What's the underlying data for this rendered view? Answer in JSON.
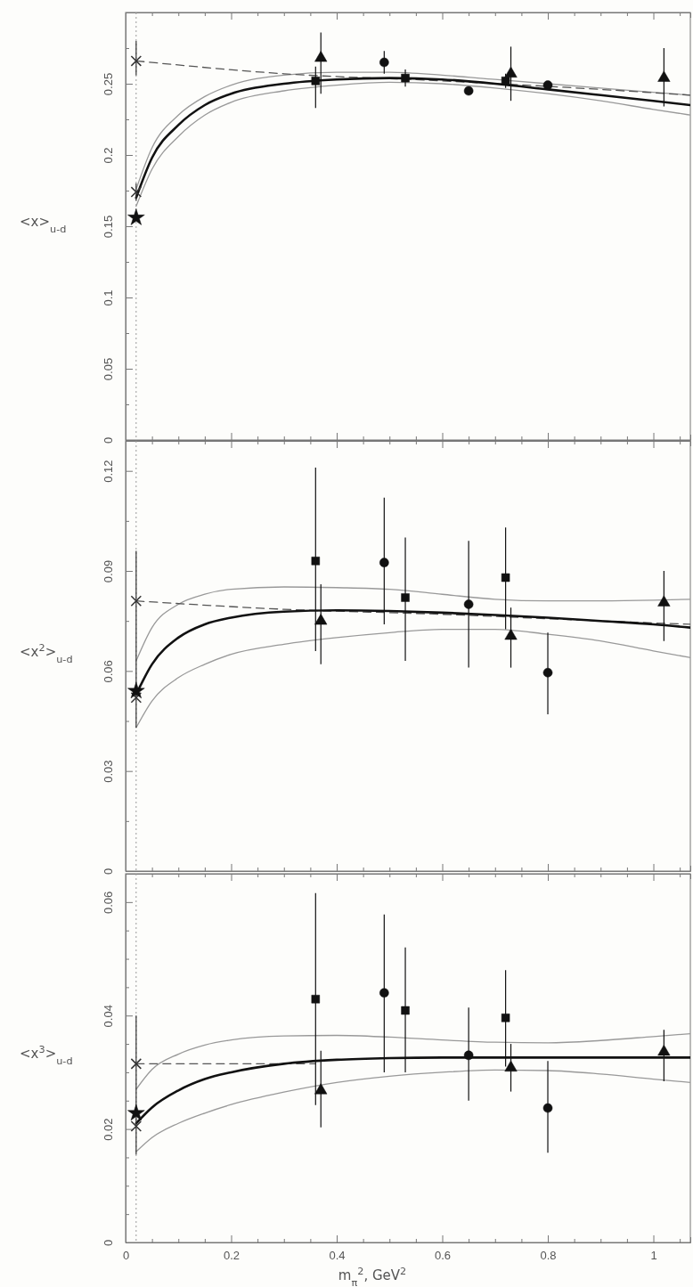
{
  "chart_data": [
    {
      "type": "scatter",
      "ylabel": "<x>$_{u-d}$",
      "xlim": [
        0,
        1.07
      ],
      "ylim": [
        0,
        0.3
      ],
      "xticks": [
        0,
        {
          "value": 0.05,
          "label": null
        },
        {
          "value": 0.1,
          "label": null
        },
        {
          "value": 0.15,
          "label": null
        },
        0.2,
        {
          "value": 0.25,
          "label": null
        },
        {
          "value": 0.3,
          "label": null
        },
        {
          "value": 0.35,
          "label": null
        },
        0.4,
        {
          "value": 0.45,
          "label": null
        },
        {
          "value": 0.5,
          "label": null
        },
        {
          "value": 0.55,
          "label": null
        },
        0.6,
        {
          "value": 0.65,
          "label": null
        },
        {
          "value": 0.7,
          "label": null
        },
        {
          "value": 0.75,
          "label": null
        },
        0.8,
        {
          "value": 0.85,
          "label": null
        },
        {
          "value": 0.9,
          "label": null
        },
        {
          "value": 0.95,
          "label": null
        },
        1,
        {
          "value": 1.05,
          "label": null
        }
      ],
      "yticks": [
        0,
        {
          "value": 0.025,
          "label": null
        },
        0.05,
        {
          "value": 0.075,
          "label": null
        },
        0.1,
        {
          "value": 0.125,
          "label": null
        },
        0.15,
        {
          "value": 0.175,
          "label": null
        },
        0.2,
        {
          "value": 0.225,
          "label": null
        },
        0.25,
        {
          "value": 0.275,
          "label": null
        }
      ],
      "tick_labels": "y",
      "grid": false,
      "ref_lines": [
        {
          "axis": "x",
          "value": 0.02,
          "color": "#999999",
          "line_style": "dotted"
        }
      ],
      "series": [
        {
          "type": "line",
          "color": "#999999",
          "line_style": "solid",
          "marker": "none",
          "x": [
            0.02,
            0.05,
            0.1,
            0.15,
            0.2,
            0.3,
            0.4,
            0.5,
            0.6,
            0.7,
            0.8,
            0.9,
            1.0,
            1.07
          ],
          "values": [
            0.176,
            0.205,
            0.228,
            0.241,
            0.249,
            0.256,
            0.258,
            0.258,
            0.256,
            0.253,
            0.25,
            0.247,
            0.244,
            0.242
          ]
        },
        {
          "type": "line",
          "color": "#999999",
          "line_style": "solid",
          "marker": "none",
          "x": [
            0.02,
            0.05,
            0.1,
            0.15,
            0.2,
            0.3,
            0.4,
            0.5,
            0.6,
            0.7,
            0.8,
            0.9,
            1.0,
            1.07
          ],
          "values": [
            0.164,
            0.19,
            0.213,
            0.228,
            0.237,
            0.245,
            0.249,
            0.251,
            0.25,
            0.247,
            0.243,
            0.238,
            0.232,
            0.228
          ]
        },
        {
          "type": "line",
          "color": "#555555",
          "line_style": "dashed",
          "marker": "none",
          "x": [
            0.02,
            0.3,
            0.6,
            0.9,
            1.07
          ],
          "values": [
            0.266,
            0.257,
            0.252,
            0.246,
            0.242
          ]
        },
        {
          "type": "line",
          "color": "#111111",
          "line_style": "solid",
          "marker": "none",
          "x": [
            0.02,
            0.05,
            0.1,
            0.15,
            0.2,
            0.3,
            0.4,
            0.5,
            0.6,
            0.7,
            0.8,
            0.9,
            1.0,
            1.07
          ],
          "values": [
            0.17,
            0.198,
            0.221,
            0.235,
            0.243,
            0.25,
            0.253,
            0.254,
            0.253,
            0.25,
            0.246,
            0.242,
            0.238,
            0.235
          ]
        },
        {
          "type": "scatter",
          "marker": "cross",
          "color": "#333333",
          "x": [
            0.02,
            0.02
          ],
          "values": [
            0.266,
            0.174
          ],
          "errors": [
            [
              0.256,
              0.28
            ],
            [
              0.168,
              0.18
            ]
          ]
        },
        {
          "type": "scatter",
          "marker": "star",
          "color": "#111111",
          "x": [
            0.02
          ],
          "values": [
            0.156
          ]
        },
        {
          "type": "scatter",
          "marker": "square",
          "color": "#111111",
          "x": [
            0.36,
            0.53,
            0.72
          ],
          "values": [
            0.252,
            0.254,
            0.252
          ],
          "errors": [
            [
              0.233,
              0.262
            ],
            [
              0.248,
              0.26
            ],
            [
              0.247,
              0.257
            ]
          ]
        },
        {
          "type": "scatter",
          "marker": "triangle",
          "color": "#111111",
          "x": [
            0.37,
            0.73,
            1.02
          ],
          "values": [
            0.268,
            0.257,
            0.254
          ],
          "errors": [
            [
              0.243,
              0.286
            ],
            [
              0.238,
              0.276
            ],
            [
              0.234,
              0.275
            ]
          ]
        },
        {
          "type": "scatter",
          "marker": "circle",
          "color": "#111111",
          "x": [
            0.49,
            0.65,
            0.8
          ],
          "values": [
            0.265,
            0.245,
            0.249
          ],
          "errors": [
            [
              0.257,
              0.273
            ],
            null,
            null
          ]
        }
      ]
    },
    {
      "type": "scatter",
      "ylabel": "<x$^{2}$>$_{u-d}$",
      "xlim": [
        0,
        1.07
      ],
      "ylim": [
        0,
        0.129
      ],
      "xticks": [
        0,
        {
          "value": 0.05,
          "label": null
        },
        {
          "value": 0.1,
          "label": null
        },
        {
          "value": 0.15,
          "label": null
        },
        0.2,
        {
          "value": 0.25,
          "label": null
        },
        {
          "value": 0.3,
          "label": null
        },
        {
          "value": 0.35,
          "label": null
        },
        0.4,
        {
          "value": 0.45,
          "label": null
        },
        {
          "value": 0.5,
          "label": null
        },
        {
          "value": 0.55,
          "label": null
        },
        0.6,
        {
          "value": 0.65,
          "label": null
        },
        {
          "value": 0.7,
          "label": null
        },
        {
          "value": 0.75,
          "label": null
        },
        0.8,
        {
          "value": 0.85,
          "label": null
        },
        {
          "value": 0.9,
          "label": null
        },
        {
          "value": 0.95,
          "label": null
        },
        1,
        {
          "value": 1.05,
          "label": null
        }
      ],
      "yticks": [
        0,
        {
          "value": 0.015,
          "label": null
        },
        0.03,
        {
          "value": 0.045,
          "label": null
        },
        0.06,
        {
          "value": 0.075,
          "label": null
        },
        0.09,
        {
          "value": 0.105,
          "label": null
        },
        0.12
      ],
      "tick_labels": "y",
      "grid": false,
      "ref_lines": [
        {
          "axis": "x",
          "value": 0.02,
          "color": "#999999",
          "line_style": "dotted"
        }
      ],
      "series": [
        {
          "type": "line",
          "color": "#999999",
          "line_style": "solid",
          "marker": "none",
          "x": [
            0.02,
            0.05,
            0.1,
            0.15,
            0.2,
            0.3,
            0.4,
            0.5,
            0.6,
            0.7,
            0.8,
            0.9,
            1.0,
            1.07
          ],
          "values": [
            0.063,
            0.073,
            0.08,
            0.083,
            0.0845,
            0.0852,
            0.085,
            0.0845,
            0.083,
            0.0815,
            0.081,
            0.081,
            0.0812,
            0.0815
          ]
        },
        {
          "type": "line",
          "color": "#999999",
          "line_style": "solid",
          "marker": "none",
          "x": [
            0.02,
            0.05,
            0.1,
            0.15,
            0.2,
            0.3,
            0.4,
            0.5,
            0.6,
            0.7,
            0.8,
            0.9,
            1.0,
            1.07
          ],
          "values": [
            0.043,
            0.051,
            0.058,
            0.062,
            0.065,
            0.068,
            0.07,
            0.0715,
            0.0725,
            0.0725,
            0.071,
            0.069,
            0.066,
            0.064
          ]
        },
        {
          "type": "line",
          "color": "#555555",
          "line_style": "dashed",
          "marker": "none",
          "x": [
            0.02,
            0.3,
            0.6,
            0.9,
            1.07
          ],
          "values": [
            0.081,
            0.0785,
            0.077,
            0.075,
            0.074
          ]
        },
        {
          "type": "line",
          "color": "#111111",
          "line_style": "solid",
          "marker": "none",
          "x": [
            0.02,
            0.05,
            0.1,
            0.15,
            0.2,
            0.3,
            0.4,
            0.5,
            0.6,
            0.7,
            0.8,
            0.9,
            1.0,
            1.07
          ],
          "values": [
            0.053,
            0.062,
            0.07,
            0.074,
            0.076,
            0.0778,
            0.0782,
            0.078,
            0.0775,
            0.0768,
            0.076,
            0.075,
            0.074,
            0.073
          ]
        },
        {
          "type": "scatter",
          "marker": "cross",
          "color": "#333333",
          "x": [
            0.02,
            0.02
          ],
          "values": [
            0.081,
            0.052
          ],
          "errors": [
            [
              0.043,
              0.096
            ],
            null
          ]
        },
        {
          "type": "scatter",
          "marker": "star",
          "color": "#111111",
          "x": [
            0.02
          ],
          "values": [
            0.054
          ]
        },
        {
          "type": "scatter",
          "marker": "square",
          "color": "#111111",
          "x": [
            0.36,
            0.53,
            0.72
          ],
          "values": [
            0.093,
            0.082,
            0.088
          ],
          "errors": [
            [
              0.066,
              0.121
            ],
            [
              0.063,
              0.1
            ],
            [
              0.0725,
              0.103
            ]
          ]
        },
        {
          "type": "scatter",
          "marker": "triangle",
          "color": "#111111",
          "x": [
            0.37,
            0.73,
            1.02
          ],
          "values": [
            0.075,
            0.0705,
            0.0805
          ],
          "errors": [
            [
              0.062,
              0.086
            ],
            [
              0.061,
              0.079
            ],
            [
              0.069,
              0.09
            ]
          ]
        },
        {
          "type": "scatter",
          "marker": "circle",
          "color": "#111111",
          "x": [
            0.49,
            0.65,
            0.8
          ],
          "values": [
            0.0925,
            0.08,
            0.0595
          ],
          "errors": [
            [
              0.074,
              0.112
            ],
            [
              0.061,
              0.099
            ],
            [
              0.047,
              0.0715
            ]
          ]
        }
      ]
    },
    {
      "type": "scatter",
      "ylabel": "<x$^{3}$>$_{u-d}$",
      "xlabel": "m$_{π}$$^{2}$, GeV$^{2}$",
      "xlim": [
        0,
        1.07
      ],
      "ylim": [
        0,
        0.065
      ],
      "xticks": [
        0,
        {
          "value": 0.05,
          "label": null
        },
        {
          "value": 0.1,
          "label": null
        },
        {
          "value": 0.15,
          "label": null
        },
        0.2,
        {
          "value": 0.25,
          "label": null
        },
        {
          "value": 0.3,
          "label": null
        },
        {
          "value": 0.35,
          "label": null
        },
        0.4,
        {
          "value": 0.45,
          "label": null
        },
        {
          "value": 0.5,
          "label": null
        },
        {
          "value": 0.55,
          "label": null
        },
        0.6,
        {
          "value": 0.65,
          "label": null
        },
        {
          "value": 0.7,
          "label": null
        },
        {
          "value": 0.75,
          "label": null
        },
        0.8,
        {
          "value": 0.85,
          "label": null
        },
        {
          "value": 0.9,
          "label": null
        },
        {
          "value": 0.95,
          "label": null
        },
        1,
        {
          "value": 1.05,
          "label": null
        }
      ],
      "yticks": [
        0,
        {
          "value": 0.005,
          "label": null
        },
        {
          "value": 0.01,
          "label": null
        },
        {
          "value": 0.015,
          "label": null
        },
        0.02,
        {
          "value": 0.025,
          "label": null
        },
        {
          "value": 0.03,
          "label": null
        },
        {
          "value": 0.035,
          "label": null
        },
        0.04,
        {
          "value": 0.045,
          "label": null
        },
        {
          "value": 0.05,
          "label": null
        },
        {
          "value": 0.055,
          "label": null
        },
        0.06
      ],
      "grid": false,
      "ref_lines": [
        {
          "axis": "x",
          "value": 0.02,
          "color": "#999999",
          "line_style": "dotted"
        }
      ],
      "series": [
        {
          "type": "line",
          "color": "#999999",
          "line_style": "solid",
          "marker": "none",
          "x": [
            0.02,
            0.05,
            0.1,
            0.15,
            0.2,
            0.3,
            0.4,
            0.5,
            0.6,
            0.7,
            0.8,
            0.9,
            1.0,
            1.07
          ],
          "values": [
            0.027,
            0.0305,
            0.0332,
            0.0348,
            0.0357,
            0.0364,
            0.0365,
            0.0362,
            0.0357,
            0.0353,
            0.0352,
            0.0356,
            0.0363,
            0.0368
          ]
        },
        {
          "type": "line",
          "color": "#999999",
          "line_style": "solid",
          "marker": "none",
          "x": [
            0.02,
            0.05,
            0.1,
            0.15,
            0.2,
            0.3,
            0.4,
            0.5,
            0.6,
            0.7,
            0.8,
            0.9,
            1.0,
            1.07
          ],
          "values": [
            0.016,
            0.0185,
            0.021,
            0.0228,
            0.0243,
            0.0265,
            0.0282,
            0.0293,
            0.03,
            0.0304,
            0.0303,
            0.0297,
            0.0288,
            0.0282
          ]
        },
        {
          "type": "line",
          "color": "#555555",
          "line_style": "dashed",
          "marker": "none",
          "x": [
            0.02,
            0.36
          ],
          "values": [
            0.0315,
            0.0315
          ]
        },
        {
          "type": "line",
          "color": "#111111",
          "line_style": "solid",
          "marker": "none",
          "x": [
            0.02,
            0.05,
            0.1,
            0.15,
            0.2,
            0.3,
            0.4,
            0.5,
            0.6,
            0.7,
            0.8,
            0.9,
            1.0,
            1.07
          ],
          "values": [
            0.021,
            0.0238,
            0.0268,
            0.0288,
            0.03,
            0.0315,
            0.0322,
            0.0325,
            0.0326,
            0.0326,
            0.0326,
            0.0326,
            0.0326,
            0.0326
          ]
        },
        {
          "type": "scatter",
          "marker": "cross",
          "color": "#333333",
          "x": [
            0.02,
            0.02
          ],
          "values": [
            0.0315,
            0.0205
          ],
          "errors": [
            [
              0.0155,
              0.04
            ],
            null
          ]
        },
        {
          "type": "scatter",
          "marker": "star",
          "color": "#111111",
          "x": [
            0.02
          ],
          "values": [
            0.0228
          ]
        },
        {
          "type": "scatter",
          "marker": "square",
          "color": "#111111",
          "x": [
            0.36,
            0.53,
            0.72
          ],
          "values": [
            0.0429,
            0.0409,
            0.0396
          ],
          "errors": [
            [
              0.0242,
              0.0616
            ],
            [
              0.03,
              0.052
            ],
            [
              0.031,
              0.048
            ]
          ]
        },
        {
          "type": "scatter",
          "marker": "triangle",
          "color": "#111111",
          "x": [
            0.37,
            0.73,
            1.02
          ],
          "values": [
            0.0268,
            0.0308,
            0.0336
          ],
          "errors": [
            [
              0.0203,
              0.0338
            ],
            [
              0.0266,
              0.035
            ],
            [
              0.0284,
              0.0375
            ]
          ]
        },
        {
          "type": "scatter",
          "marker": "circle",
          "color": "#111111",
          "x": [
            0.49,
            0.65,
            0.8
          ],
          "values": [
            0.044,
            0.033,
            0.0237
          ],
          "errors": [
            [
              0.03,
              0.0578
            ],
            [
              0.025,
              0.0414
            ],
            [
              0.0158,
              0.032
            ]
          ]
        }
      ]
    }
  ]
}
